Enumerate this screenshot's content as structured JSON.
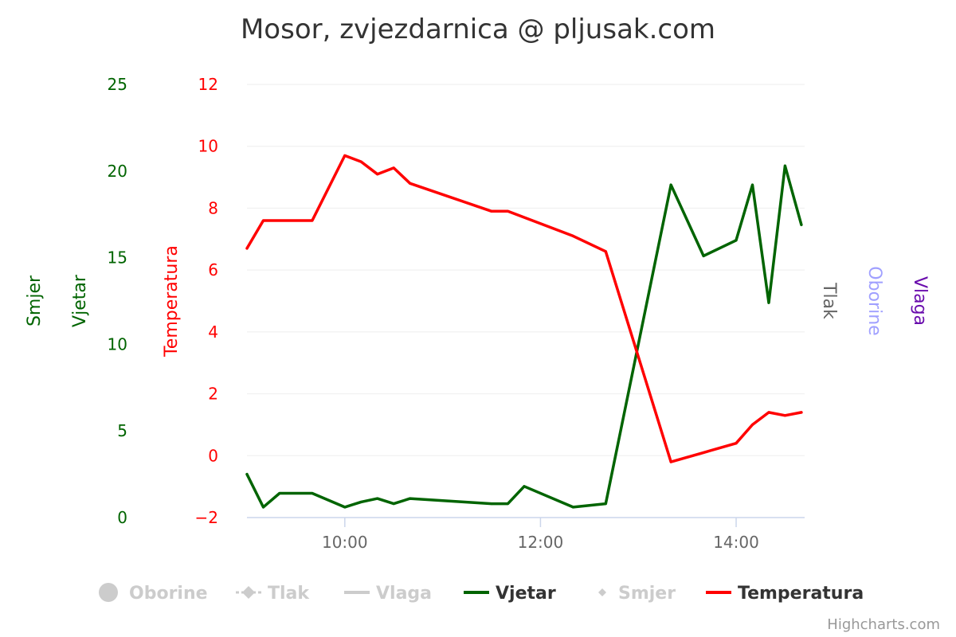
{
  "chart_data": {
    "type": "line",
    "title": "Mosor, zvjezdarnica @ pljusak.com",
    "x_axis": {
      "type": "datetime",
      "range": [
        "09:00",
        "14:42"
      ],
      "tick_labels": [
        "10:00",
        "12:00",
        "14:00"
      ]
    },
    "y_axes": [
      {
        "name": "Smjer",
        "color": "#006400",
        "range": [
          0,
          25
        ],
        "tick_labels": [
          "0",
          "5",
          "10",
          "15",
          "20",
          "25"
        ]
      },
      {
        "name": "Vjetar",
        "color": "#006400",
        "range": [
          0,
          25
        ]
      },
      {
        "name": "Temperatura",
        "color": "#ff0000",
        "range": [
          -2,
          12
        ],
        "tick_labels": [
          "−2",
          "0",
          "2",
          "4",
          "6",
          "8",
          "10",
          "12"
        ]
      },
      {
        "name": "Tlak",
        "color": "#666666"
      },
      {
        "name": "Oborine",
        "color": "#a0a0ff"
      },
      {
        "name": "Vlaga",
        "color": "#6a0dad"
      }
    ],
    "grid": true,
    "legend_position": "bottom",
    "series": [
      {
        "name": "Vjetar",
        "color": "#006400",
        "visible": true,
        "x": [
          "09:00",
          "09:10",
          "09:20",
          "09:40",
          "10:00",
          "10:10",
          "10:20",
          "10:30",
          "10:40",
          "11:30",
          "11:40",
          "11:50",
          "12:20",
          "12:40",
          "13:20",
          "13:40",
          "14:00",
          "14:10",
          "14:20",
          "14:30",
          "14:40"
        ],
        "y": [
          2.5,
          0.6,
          1.4,
          1.4,
          0.6,
          0.9,
          1.1,
          0.8,
          1.1,
          0.8,
          0.8,
          1.8,
          0.6,
          0.8,
          19.2,
          15.1,
          16.0,
          19.2,
          12.4,
          20.3,
          16.9
        ]
      },
      {
        "name": "Temperatura",
        "color": "#ff0000",
        "visible": true,
        "x": [
          "09:00",
          "09:10",
          "09:20",
          "09:40",
          "10:00",
          "10:10",
          "10:20",
          "10:30",
          "10:40",
          "11:30",
          "11:40",
          "12:20",
          "12:40",
          "13:20",
          "13:40",
          "14:00",
          "14:10",
          "14:20",
          "14:30",
          "14:40"
        ],
        "y": [
          6.7,
          7.6,
          7.6,
          7.6,
          9.7,
          9.5,
          9.1,
          9.3,
          8.8,
          7.9,
          7.9,
          7.1,
          6.6,
          -0.2,
          0.1,
          0.4,
          1.0,
          1.4,
          1.3,
          1.4
        ]
      }
    ],
    "legend": [
      {
        "name": "Oborine",
        "symbol": "circle",
        "color": "#cccccc",
        "visible": false
      },
      {
        "name": "Tlak",
        "symbol": "dash-diamond",
        "color": "#cccccc",
        "visible": false
      },
      {
        "name": "Vlaga",
        "symbol": "line",
        "color": "#cccccc",
        "visible": false
      },
      {
        "name": "Vjetar",
        "symbol": "line",
        "color": "#006400",
        "visible": true
      },
      {
        "name": "Smjer",
        "symbol": "diamond",
        "color": "#cccccc",
        "visible": false
      },
      {
        "name": "Temperatura",
        "symbol": "line",
        "color": "#ff0000",
        "visible": true
      }
    ],
    "credits": "Highcharts.com"
  }
}
